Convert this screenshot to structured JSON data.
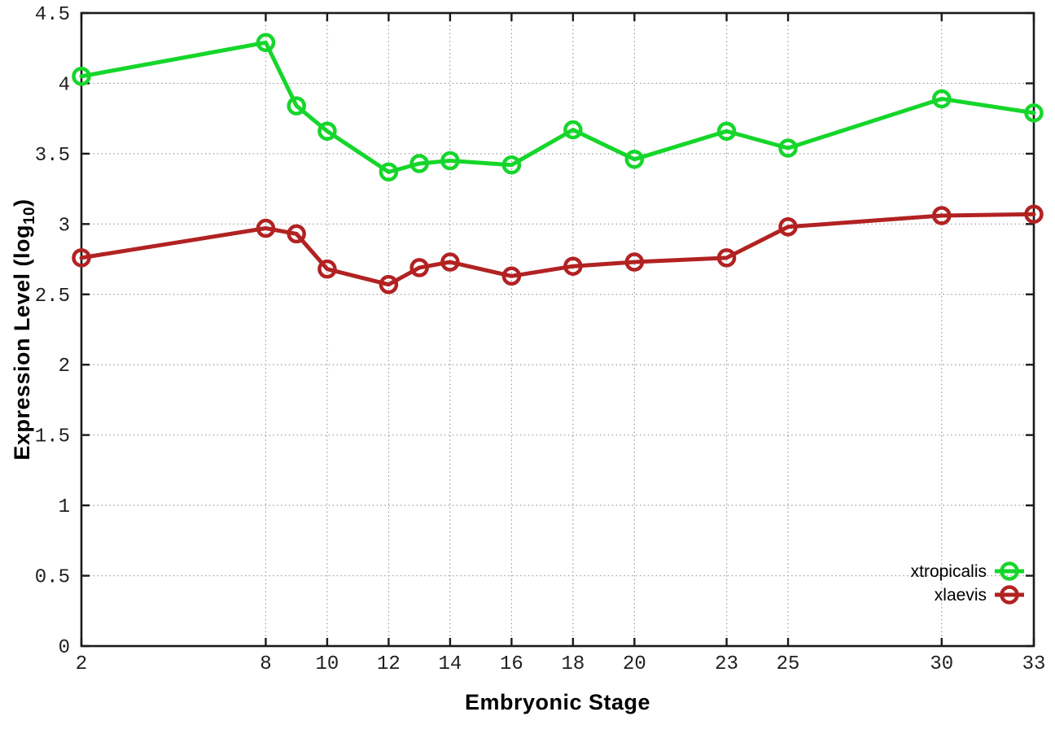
{
  "figure": {
    "xlabel": "Embryonic Stage",
    "ylabel_prefix": "Expression Level (log",
    "ylabel_sub": "10",
    "ylabel_suffix": ")"
  },
  "colors": {
    "axis": "#1a1a1a",
    "grid": "#9a9a9a",
    "tick_label": "#1f1f1f",
    "background": "#ffffff"
  },
  "chart_data": {
    "type": "line",
    "title": "",
    "xlabel": "Embryonic Stage",
    "ylabel": "Expression Level (log10)",
    "x": [
      2,
      8,
      9,
      10,
      12,
      13,
      14,
      16,
      18,
      20,
      23,
      25,
      30,
      33
    ],
    "series": [
      {
        "name": "xtropicalis",
        "color": "#15d62a",
        "values": [
          4.05,
          4.29,
          3.84,
          3.66,
          3.37,
          3.43,
          3.45,
          3.42,
          3.67,
          3.46,
          3.66,
          3.54,
          3.89,
          3.79
        ]
      },
      {
        "name": "xlaevis",
        "color": "#b22222",
        "values": [
          2.76,
          2.97,
          2.93,
          2.68,
          2.57,
          2.69,
          2.73,
          2.63,
          2.7,
          2.73,
          2.76,
          2.98,
          3.06,
          3.07
        ]
      }
    ],
    "xticks": [
      2,
      8,
      10,
      12,
      14,
      16,
      18,
      20,
      23,
      25,
      30,
      33
    ],
    "yticks": [
      0,
      0.5,
      1,
      1.5,
      2,
      2.5,
      3,
      3.5,
      4,
      4.5
    ],
    "xlim": [
      2,
      33
    ],
    "ylim": [
      0,
      4.5
    ],
    "grid": true,
    "legend_position": "inside-bottom-right",
    "marker": "open-circle",
    "line_width": 5,
    "marker_radius": 9.5
  }
}
